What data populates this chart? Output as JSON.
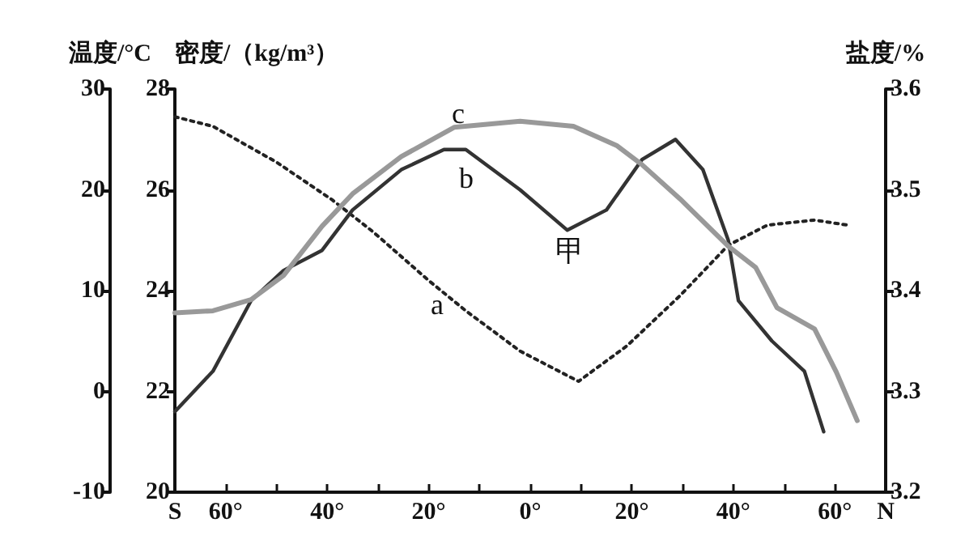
{
  "chart_data": {
    "type": "line",
    "ylabel": "温度/°C",
    "y2label": "密度/（kg/m³）",
    "y3label": "盐度/%",
    "xlim": [
      -70,
      70
    ],
    "xticks": [
      {
        "value": -70,
        "label": "S"
      },
      {
        "value": -60,
        "label": "60°"
      },
      {
        "value": -50,
        "label": null
      },
      {
        "value": -40,
        "label": "40°"
      },
      {
        "value": -30,
        "label": null
      },
      {
        "value": -20,
        "label": "20°"
      },
      {
        "value": -10,
        "label": null
      },
      {
        "value": 0,
        "label": "0°"
      },
      {
        "value": 10,
        "label": null
      },
      {
        "value": 20,
        "label": "20°"
      },
      {
        "value": 30,
        "label": null
      },
      {
        "value": 40,
        "label": "40°"
      },
      {
        "value": 50,
        "label": null
      },
      {
        "value": 60,
        "label": "60°"
      },
      {
        "value": 70,
        "label": "N"
      }
    ],
    "ylim": [
      -10,
      30
    ],
    "yticks": [
      -10,
      0,
      10,
      20,
      30
    ],
    "y2lim": [
      20,
      28
    ],
    "y2ticks": [
      20,
      22,
      24,
      26,
      28
    ],
    "y3lim": [
      3.2,
      3.6
    ],
    "y3ticks": [
      3.2,
      3.3,
      3.4,
      3.5,
      3.6
    ],
    "series": [
      {
        "color": "#222222",
        "line_style": "dotted",
        "axis": "y2",
        "x": [
          -70,
          -62.5,
          -50,
          -39,
          -31,
          -20,
          -12.7,
          -2,
          9.5,
          19,
          29.5,
          39,
          46.7,
          56,
          62.5
        ],
        "values": [
          27.45,
          27.26,
          26.55,
          25.8,
          25.17,
          24.2,
          23.6,
          22.8,
          22.2,
          22.9,
          23.9,
          24.9,
          25.3,
          25.4,
          25.3
        ]
      },
      {
        "color": "#333333",
        "line_style": "solid",
        "axis": "y3",
        "x": [
          -70,
          -62.5,
          -55,
          -48.6,
          -41,
          -35,
          -25.4,
          -17,
          -12.7,
          -2,
          7.3,
          15,
          22,
          28.6,
          34,
          39,
          41,
          47.6,
          54,
          57.8
        ],
        "values": [
          3.28,
          3.32,
          3.39,
          3.42,
          3.44,
          3.48,
          3.52,
          3.54,
          3.54,
          3.5,
          3.46,
          3.48,
          3.53,
          3.55,
          3.52,
          3.45,
          3.39,
          3.35,
          3.32,
          3.26
        ]
      },
      {
        "color": "#999999",
        "line_style": "solid",
        "axis": "y",
        "x": [
          -70,
          -62.5,
          -55,
          -48.6,
          -41,
          -35,
          -25.4,
          -15,
          -2,
          8.5,
          17,
          22,
          29.5,
          39,
          44.4,
          48.6,
          56,
          60.3,
          64.4
        ],
        "values": [
          7.8,
          8,
          9.1,
          11.5,
          16.4,
          19.6,
          23.3,
          26.2,
          26.8,
          26.3,
          24.4,
          22.5,
          19.1,
          14.4,
          12.3,
          8.3,
          6.2,
          1.9,
          -2.9
        ]
      }
    ],
    "annotations": [
      "a",
      "b",
      "c",
      "甲"
    ],
    "marker": "none"
  }
}
